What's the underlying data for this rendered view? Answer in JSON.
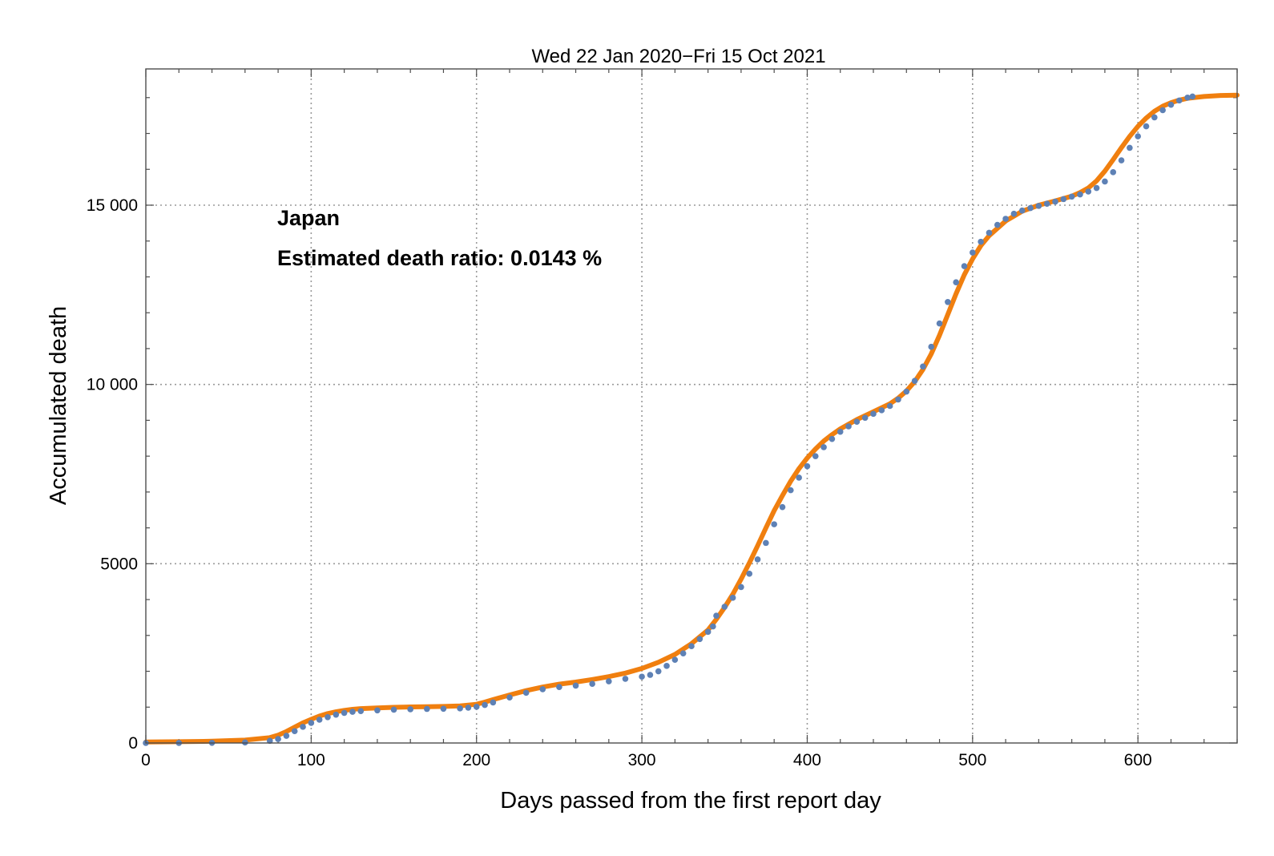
{
  "chart_data": {
    "type": "scatter",
    "title": "Wed 22 Jan 2020−Fri 15 Oct 2021",
    "xlabel": "Days passed from the first report day",
    "ylabel": "Accumulated death",
    "xlim": [
      0,
      660
    ],
    "ylim": [
      0,
      18800
    ],
    "x_ticks": [
      0,
      100,
      200,
      300,
      400,
      500,
      600
    ],
    "x_tick_labels": [
      "0",
      "100",
      "200",
      "300",
      "400",
      "500",
      "600"
    ],
    "y_ticks": [
      0,
      5000,
      10000,
      15000
    ],
    "y_tick_labels": [
      "0",
      "5000",
      "10 000",
      "15 000"
    ],
    "grid": true,
    "annotations": [
      "Japan",
      "Estimated death ratio: 0.0143 %"
    ],
    "colors": {
      "data": "#5e81b5",
      "fit": "#f07f0f"
    },
    "series": [
      {
        "style": "points",
        "x": [
          0,
          20,
          40,
          60,
          75,
          80,
          85,
          90,
          95,
          100,
          105,
          110,
          115,
          120,
          125,
          130,
          140,
          150,
          160,
          170,
          180,
          190,
          195,
          200,
          205,
          210,
          220,
          230,
          240,
          250,
          260,
          270,
          280,
          290,
          300,
          305,
          310,
          315,
          320,
          325,
          330,
          335,
          340,
          343,
          345,
          350,
          355,
          360,
          365,
          370,
          375,
          380,
          385,
          390,
          395,
          400,
          405,
          410,
          415,
          420,
          425,
          430,
          435,
          440,
          445,
          450,
          455,
          460,
          465,
          470,
          475,
          480,
          485,
          490,
          495,
          500,
          505,
          510,
          515,
          520,
          525,
          530,
          535,
          540,
          545,
          550,
          555,
          560,
          565,
          570,
          575,
          580,
          585,
          590,
          595,
          600,
          605,
          610,
          615,
          620,
          625,
          630,
          633
        ],
        "y": [
          0,
          2,
          5,
          15,
          60,
          110,
          200,
          330,
          450,
          560,
          650,
          720,
          790,
          840,
          870,
          890,
          910,
          930,
          940,
          950,
          955,
          965,
          985,
          1010,
          1060,
          1130,
          1270,
          1400,
          1500,
          1560,
          1600,
          1650,
          1720,
          1790,
          1850,
          1900,
          2000,
          2150,
          2320,
          2500,
          2700,
          2900,
          3100,
          3250,
          3550,
          3800,
          4050,
          4350,
          4720,
          5120,
          5580,
          6100,
          6580,
          7050,
          7400,
          7720,
          8000,
          8250,
          8480,
          8680,
          8830,
          8960,
          9070,
          9180,
          9280,
          9400,
          9580,
          9800,
          10100,
          10500,
          11050,
          11700,
          12300,
          12850,
          13300,
          13680,
          13980,
          14230,
          14450,
          14620,
          14760,
          14850,
          14920,
          14980,
          15040,
          15100,
          15170,
          15240,
          15300,
          15380,
          15480,
          15660,
          15920,
          16250,
          16600,
          16920,
          17200,
          17450,
          17650,
          17800,
          17920,
          18000,
          18030
        ]
      },
      {
        "style": "line",
        "x": [
          0,
          20,
          40,
          60,
          75,
          80,
          85,
          90,
          95,
          100,
          105,
          110,
          115,
          120,
          125,
          130,
          140,
          150,
          160,
          170,
          180,
          190,
          200,
          205,
          210,
          220,
          230,
          240,
          250,
          260,
          270,
          280,
          290,
          300,
          310,
          320,
          330,
          340,
          345,
          350,
          355,
          360,
          365,
          370,
          375,
          380,
          385,
          390,
          395,
          400,
          405,
          410,
          415,
          420,
          430,
          440,
          450,
          455,
          460,
          465,
          470,
          475,
          480,
          485,
          490,
          495,
          500,
          505,
          510,
          520,
          530,
          540,
          550,
          560,
          565,
          570,
          575,
          580,
          585,
          590,
          595,
          600,
          605,
          610,
          615,
          620,
          625,
          630,
          640,
          650,
          660
        ],
        "y": [
          30,
          35,
          50,
          80,
          150,
          220,
          320,
          440,
          560,
          660,
          750,
          820,
          870,
          910,
          940,
          960,
          980,
          995,
          1005,
          1010,
          1020,
          1035,
          1080,
          1140,
          1210,
          1340,
          1460,
          1560,
          1640,
          1700,
          1770,
          1850,
          1950,
          2080,
          2250,
          2470,
          2770,
          3150,
          3450,
          3780,
          4150,
          4570,
          5020,
          5500,
          6000,
          6480,
          6900,
          7300,
          7650,
          7950,
          8200,
          8420,
          8600,
          8760,
          9020,
          9240,
          9460,
          9620,
          9820,
          10080,
          10420,
          10850,
          11370,
          11950,
          12530,
          13060,
          13500,
          13870,
          14150,
          14560,
          14830,
          15000,
          15120,
          15250,
          15350,
          15480,
          15680,
          15950,
          16270,
          16600,
          16920,
          17200,
          17430,
          17620,
          17760,
          17860,
          17930,
          17980,
          18030,
          18060,
          18070
        ]
      }
    ]
  }
}
